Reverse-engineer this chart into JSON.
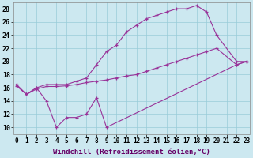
{
  "xlabel": "Windchill (Refroidissement éolien,°C)",
  "background_color": "#cce8f0",
  "grid_color": "#99ccd9",
  "line_color": "#993399",
  "xlim_min": -0.3,
  "xlim_max": 23.3,
  "ylim_min": 9,
  "ylim_max": 29,
  "yticks": [
    10,
    12,
    14,
    16,
    18,
    20,
    22,
    24,
    26,
    28
  ],
  "xtick_labels": [
    "0",
    "1",
    "2",
    "3",
    "4",
    "5",
    "6",
    "7",
    "8",
    "9",
    "10",
    "11",
    "12",
    "13",
    "14",
    "15",
    "16",
    "17",
    "18",
    "19",
    "20",
    "21",
    "22",
    "23"
  ],
  "s1_x": [
    0,
    1,
    2,
    3,
    4,
    5,
    6,
    7,
    8,
    9,
    22,
    23
  ],
  "s1_y": [
    16.5,
    15.0,
    16.0,
    14.0,
    10.0,
    11.5,
    11.5,
    12.0,
    14.5,
    10.0,
    19.5,
    20.0
  ],
  "s2_x": [
    0,
    1,
    2,
    3,
    4,
    5,
    6,
    7,
    8,
    9,
    10,
    11,
    12,
    13,
    14,
    15,
    16,
    17,
    18,
    19,
    20,
    22,
    23
  ],
  "s2_y": [
    16.3,
    15.0,
    15.8,
    16.2,
    16.2,
    16.3,
    16.5,
    16.8,
    17.0,
    17.2,
    17.5,
    17.8,
    18.0,
    18.5,
    19.0,
    19.5,
    20.0,
    20.5,
    21.0,
    21.5,
    22.0,
    19.5,
    20.0
  ],
  "s3_x": [
    0,
    1,
    2,
    3,
    4,
    5,
    6,
    7,
    8,
    9,
    10,
    11,
    12,
    13,
    14,
    15,
    16,
    17,
    18,
    19,
    20,
    22,
    23
  ],
  "s3_y": [
    16.5,
    15.0,
    16.0,
    16.5,
    16.5,
    16.5,
    17.0,
    17.5,
    19.5,
    21.5,
    22.5,
    24.5,
    25.5,
    26.5,
    27.0,
    27.5,
    28.0,
    28.0,
    28.5,
    27.5,
    24.0,
    20.0,
    20.0
  ],
  "xlabel_fontsize": 6.5,
  "tick_fontsize": 5.5
}
